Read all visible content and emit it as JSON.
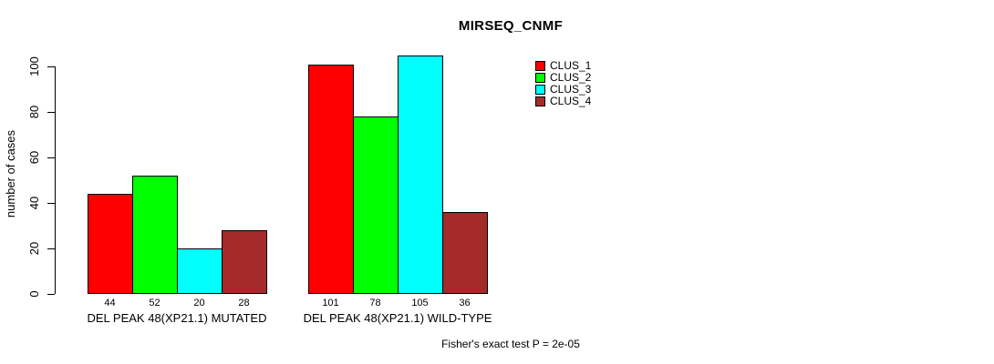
{
  "chart_data": {
    "type": "bar",
    "title": "MIRSEQ_CNMF",
    "ylabel": "number of cases",
    "xlabel": "",
    "ylim": [
      0,
      105
    ],
    "yticks": [
      0,
      20,
      40,
      60,
      80,
      100
    ],
    "grid": false,
    "legend_position": "top-right",
    "bar_value_labels": true,
    "categories": [
      "DEL PEAK 48(XP21.1) MUTATED",
      "DEL PEAK 48(XP21.1) WILD-TYPE"
    ],
    "series": [
      {
        "name": "CLUS_1",
        "color": "#FF0000",
        "values": [
          44,
          101
        ]
      },
      {
        "name": "CLUS_2",
        "color": "#00FF00",
        "values": [
          52,
          78
        ]
      },
      {
        "name": "CLUS_3",
        "color": "#00FFFF",
        "values": [
          20,
          105
        ]
      },
      {
        "name": "CLUS_4",
        "color": "#A52A2A",
        "values": [
          28,
          36
        ]
      }
    ],
    "annotation": "Fisher's exact test P = 2e-05"
  },
  "colors": {
    "axis": "#000000",
    "background": "#FFFFFF"
  }
}
